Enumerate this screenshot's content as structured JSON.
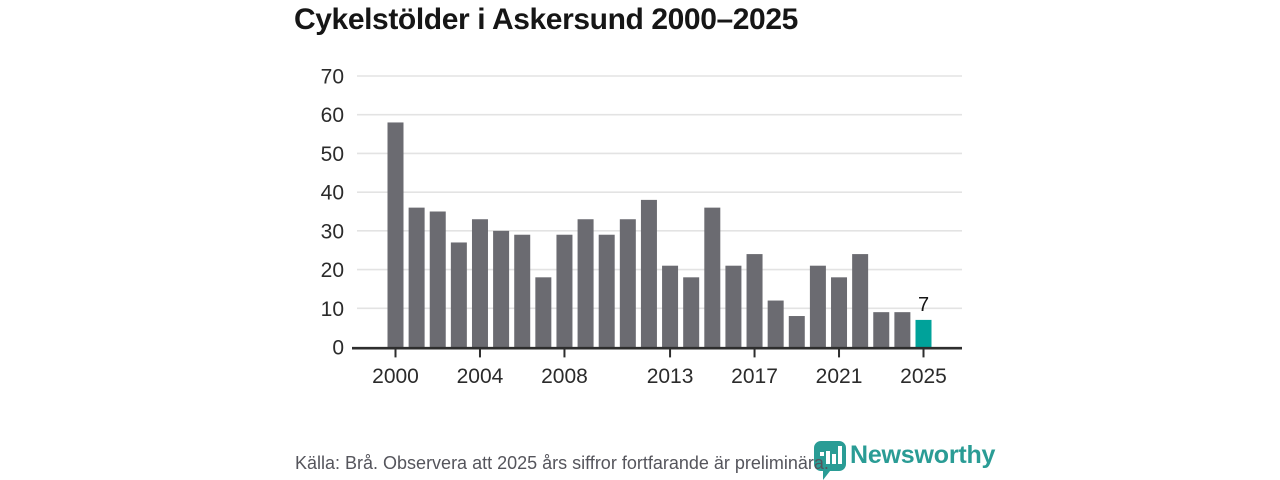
{
  "title": "Cykelstölder i Askersund 2000–2025",
  "source_note": "Källa: Brå. Observera att 2025 års siffror fortfarande är preliminära.",
  "branding": {
    "name": "Newsworthy",
    "icon": "bar-chart-speech-bubble-icon"
  },
  "colors": {
    "bar": "#6B6B71",
    "highlight": "#00A29A",
    "grid": "#E3E3E3",
    "axis": "#2E2E2E",
    "axis_text": "#2B2B2B",
    "title_text": "#161616",
    "muted_text": "#55555C",
    "brand": "#2A9C95",
    "background": "#FFFFFF"
  },
  "chart_data": {
    "type": "bar",
    "title": "Cykelstölder i Askersund 2000–2025",
    "xlabel": "",
    "ylabel": "",
    "x": [
      2000,
      2001,
      2002,
      2003,
      2004,
      2005,
      2006,
      2007,
      2008,
      2009,
      2010,
      2011,
      2012,
      2013,
      2014,
      2015,
      2016,
      2017,
      2018,
      2019,
      2020,
      2021,
      2022,
      2023,
      2024,
      2025
    ],
    "values": [
      58,
      36,
      35,
      27,
      33,
      30,
      29,
      18,
      29,
      33,
      29,
      33,
      38,
      21,
      18,
      36,
      21,
      24,
      12,
      8,
      21,
      18,
      24,
      9,
      9,
      7
    ],
    "highlight_index": 25,
    "value_labels": [
      {
        "year": 2025,
        "text": "7"
      }
    ],
    "xticks": [
      2000,
      2004,
      2008,
      2013,
      2017,
      2021,
      2025
    ],
    "yticks": [
      0,
      10,
      20,
      30,
      40,
      50,
      60,
      70
    ],
    "ylim": [
      0,
      70
    ],
    "grid": "horizontal",
    "legend": "none"
  }
}
